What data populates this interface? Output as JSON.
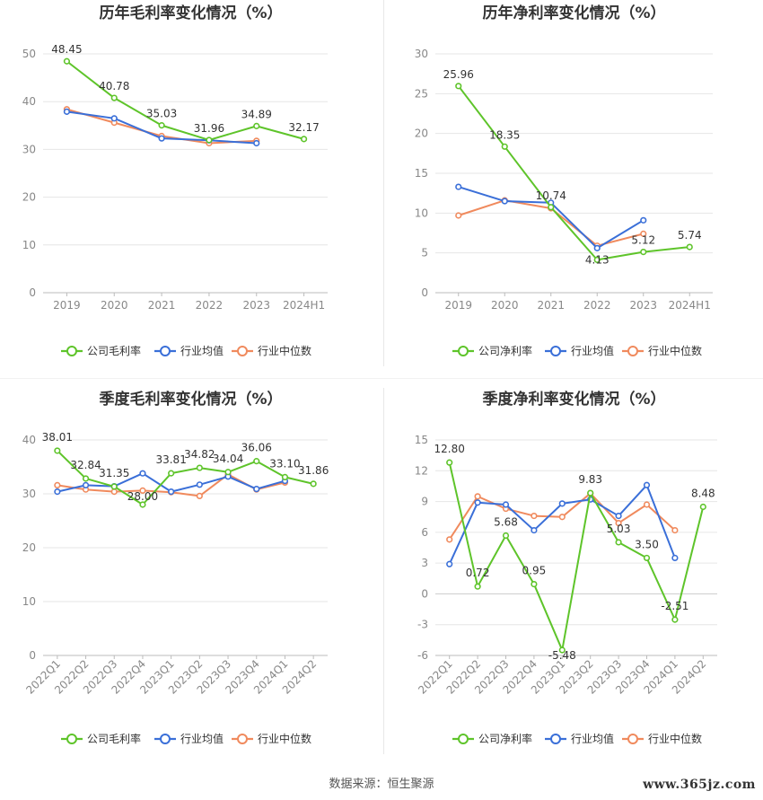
{
  "colors": {
    "company": "#5ec42a",
    "industry_avg": "#3a6fd8",
    "industry_median": "#f08a5d",
    "grid": "#e6e6e6"
  },
  "legend": {
    "gross": [
      "公司毛利率",
      "行业均值",
      "行业中位数"
    ],
    "net": [
      "公司净利率",
      "行业均值",
      "行业中位数"
    ]
  },
  "source": "数据来源：恒生聚源",
  "watermark": "www.365jz.com",
  "chart_data": [
    {
      "type": "line",
      "title": "历年毛利率变化情况（%）",
      "categories": [
        "2019",
        "2020",
        "2021",
        "2022",
        "2023",
        "2024H1"
      ],
      "ylim": [
        0,
        50
      ],
      "yticks": [
        0,
        10,
        20,
        30,
        40,
        50
      ],
      "grid": true,
      "legend_position": "bottom",
      "rotate_x": false,
      "series": [
        {
          "name": "公司毛利率",
          "values": [
            48.45,
            40.78,
            35.03,
            31.96,
            34.89,
            32.17
          ],
          "labels": true
        },
        {
          "name": "行业均值",
          "values": [
            37.9,
            36.5,
            32.3,
            31.9,
            31.3,
            null
          ]
        },
        {
          "name": "行业中位数",
          "values": [
            38.4,
            35.6,
            32.8,
            31.3,
            31.8,
            null
          ]
        }
      ]
    },
    {
      "type": "line",
      "title": "历年净利率变化情况（%）",
      "categories": [
        "2019",
        "2020",
        "2021",
        "2022",
        "2023",
        "2024H1"
      ],
      "ylim": [
        0,
        30
      ],
      "yticks": [
        0,
        5,
        10,
        15,
        20,
        25,
        30
      ],
      "grid": true,
      "legend_position": "bottom",
      "rotate_x": false,
      "series": [
        {
          "name": "公司净利率",
          "values": [
            25.96,
            18.35,
            10.74,
            4.13,
            5.12,
            5.74
          ],
          "labels": true
        },
        {
          "name": "行业均值",
          "values": [
            13.3,
            11.5,
            11.3,
            5.6,
            9.1,
            null
          ]
        },
        {
          "name": "行业中位数",
          "values": [
            9.7,
            11.6,
            10.6,
            5.9,
            7.4,
            null
          ]
        }
      ]
    },
    {
      "type": "line",
      "title": "季度毛利率变化情况（%）",
      "categories": [
        "2022Q1",
        "2022Q2",
        "2022Q3",
        "2022Q4",
        "2023Q1",
        "2023Q2",
        "2023Q3",
        "2023Q4",
        "2024Q1",
        "2024Q2"
      ],
      "ylim": [
        0,
        40
      ],
      "yticks": [
        0,
        10,
        20,
        30,
        40
      ],
      "grid": true,
      "legend_position": "bottom",
      "rotate_x": true,
      "series": [
        {
          "name": "公司毛利率",
          "values": [
            38.01,
            32.84,
            31.35,
            28.0,
            33.81,
            34.82,
            34.04,
            36.06,
            33.1,
            31.86
          ],
          "labels": true,
          "label_text": [
            "38.01",
            "32.84",
            "31.35",
            "28.00",
            "33.81",
            "34.82",
            "34.04",
            "36.06",
            "33.10",
            "31.86"
          ]
        },
        {
          "name": "行业均值",
          "values": [
            30.4,
            31.6,
            31.4,
            33.8,
            30.4,
            31.7,
            33.2,
            30.9,
            32.4,
            null
          ]
        },
        {
          "name": "行业中位数",
          "values": [
            31.6,
            30.8,
            30.4,
            30.6,
            30.3,
            29.6,
            33.6,
            30.8,
            32.1,
            null
          ]
        }
      ]
    },
    {
      "type": "line",
      "title": "季度净利率变化情况（%）",
      "categories": [
        "2022Q1",
        "2022Q2",
        "2022Q3",
        "2022Q4",
        "2023Q1",
        "2023Q2",
        "2023Q3",
        "2023Q4",
        "2024Q1",
        "2024Q2"
      ],
      "ylim": [
        -6,
        15
      ],
      "yticks": [
        -6,
        -3,
        0,
        3,
        6,
        9,
        12,
        15
      ],
      "grid": true,
      "legend_position": "bottom",
      "rotate_x": true,
      "series": [
        {
          "name": "公司净利率",
          "values": [
            12.8,
            0.72,
            5.68,
            0.95,
            -5.48,
            9.83,
            5.03,
            3.5,
            -2.51,
            8.48
          ],
          "labels": true,
          "label_text": [
            "12.80",
            "0.72",
            "5.68",
            "0.95",
            "-5.48",
            "9.83",
            "5.03",
            "3.50",
            "-2.51",
            "8.48"
          ]
        },
        {
          "name": "行业均值",
          "values": [
            2.9,
            8.9,
            8.7,
            6.2,
            8.8,
            9.2,
            7.6,
            10.6,
            3.5,
            null
          ]
        },
        {
          "name": "行业中位数",
          "values": [
            5.3,
            9.5,
            8.3,
            7.6,
            7.5,
            9.8,
            6.9,
            8.7,
            6.2,
            null
          ]
        }
      ]
    }
  ]
}
